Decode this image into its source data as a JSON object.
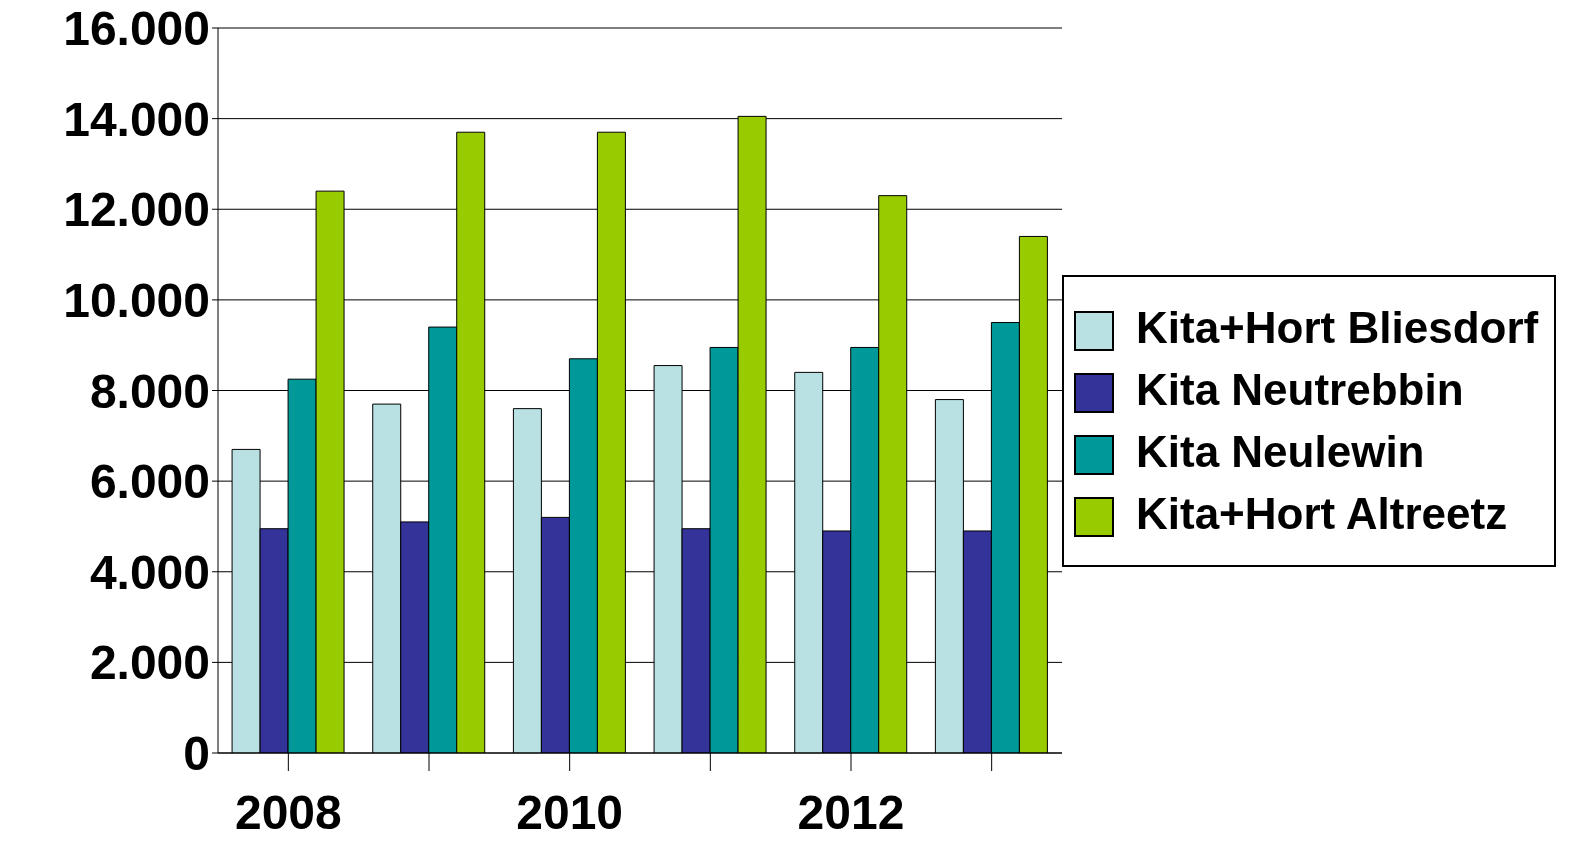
{
  "chart_data": {
    "type": "bar",
    "categories": [
      "2008",
      null,
      "2010",
      null,
      "2012",
      null
    ],
    "series": [
      {
        "name": "Kita+Hort Bliesdorf",
        "color": "#b9e0e3",
        "values": [
          6700,
          7700,
          7600,
          8550,
          8400,
          7800
        ]
      },
      {
        "name": "Kita Neutrebbin",
        "color": "#333399",
        "values": [
          4950,
          5100,
          5200,
          4950,
          4900,
          4900
        ]
      },
      {
        "name": "Kita Neulewin",
        "color": "#009999",
        "values": [
          8250,
          9400,
          8700,
          8950,
          8950,
          9500
        ]
      },
      {
        "name": "Kita+Hort Altreetz",
        "color": "#99cc00",
        "values": [
          12400,
          13700,
          13700,
          14050,
          12300,
          11400
        ]
      }
    ],
    "ylim": [
      0,
      16000
    ],
    "yticks": [
      {
        "value": 0,
        "label": "0"
      },
      {
        "value": 2000,
        "label": "2.000"
      },
      {
        "value": 4000,
        "label": "4.000"
      },
      {
        "value": 6000,
        "label": "6.000"
      },
      {
        "value": 8000,
        "label": "8.000"
      },
      {
        "value": 10000,
        "label": "10.000"
      },
      {
        "value": 12000,
        "label": "12.000"
      },
      {
        "value": 14000,
        "label": "14.000"
      },
      {
        "value": 16000,
        "label": "16.000"
      }
    ],
    "grid": "y",
    "legend": "right"
  }
}
